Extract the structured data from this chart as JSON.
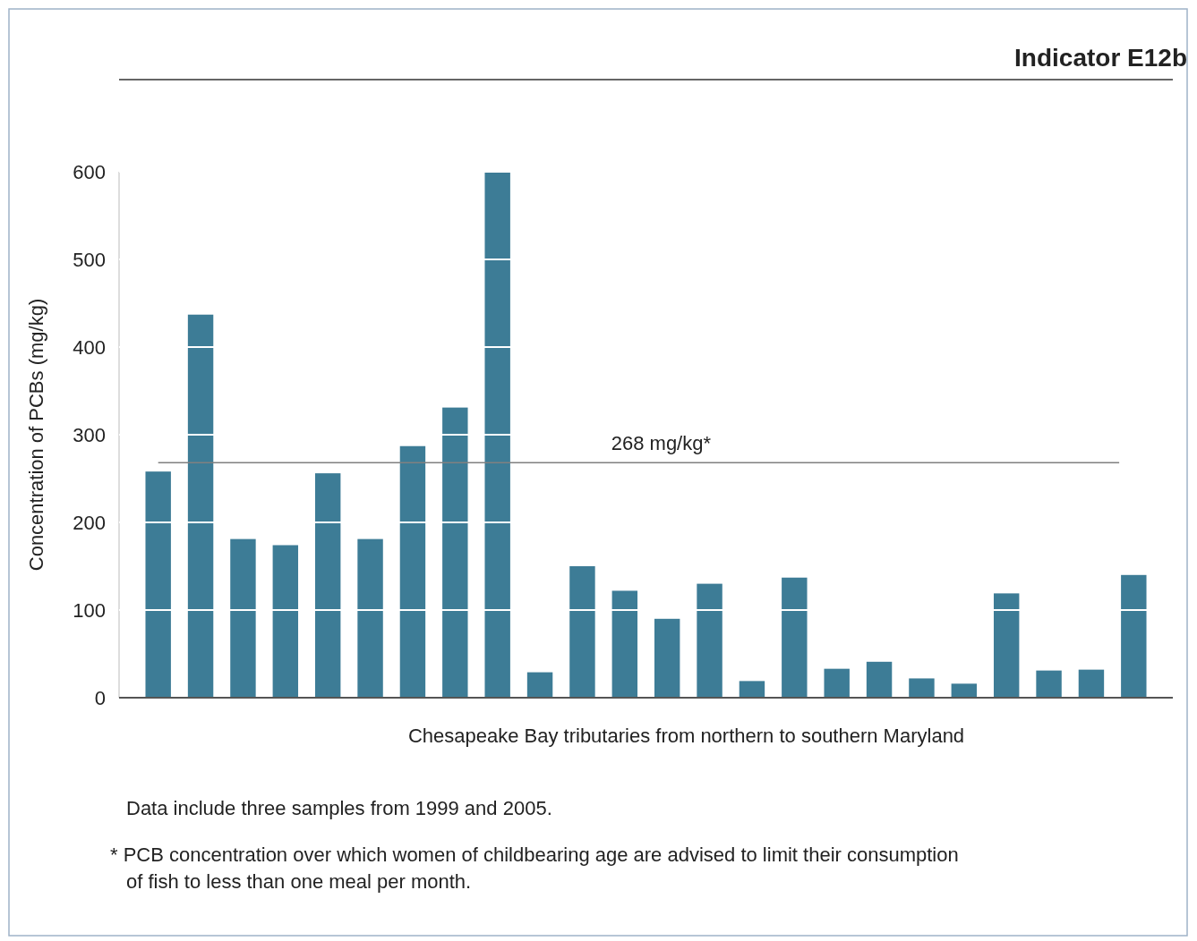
{
  "chart_data": {
    "type": "bar",
    "title": "Indicator E12b",
    "xlabel": "Chesapeake Bay tributaries from northern to southern Maryland",
    "ylabel": "Concentration of PCBs (mg/kg)",
    "categories": [
      null,
      null,
      null,
      null,
      null,
      null,
      null,
      null,
      null,
      null,
      null,
      null,
      null,
      null,
      null,
      null,
      null,
      null,
      null,
      null,
      null,
      null,
      null,
      null
    ],
    "values": [
      258,
      437,
      181,
      174,
      256,
      181,
      287,
      331,
      600,
      29,
      150,
      122,
      90,
      130,
      19,
      137,
      33,
      41,
      22,
      16,
      119,
      31,
      32,
      140
    ],
    "color": "#3d7c96",
    "ylim": [
      0,
      600
    ],
    "yticks": [
      0,
      100,
      200,
      300,
      400,
      500,
      600
    ],
    "grid": "y",
    "ref_lines": [
      {
        "axis": "y",
        "value": 268,
        "label": "268 mg/kg*",
        "color": "#808080"
      }
    ],
    "annotations": [
      "Data include  three samples from 1999 and 2005.",
      "* PCB concentration over which women of childbearing age are advised to limit their consumption of fish to less than one meal per month."
    ]
  }
}
